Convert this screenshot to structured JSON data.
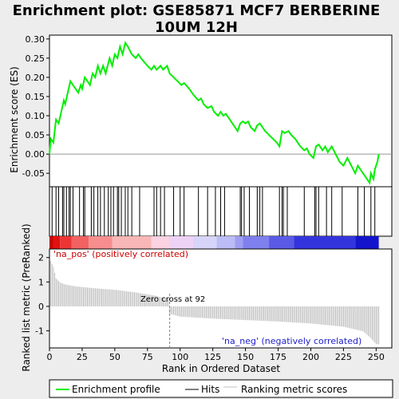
{
  "title_line1": "Enrichment plot: GSE85871 MCF7 BERBERINE",
  "title_line2": "10UM 12H",
  "es_panel": {
    "ylabel": "Enrichment score (ES)",
    "y_ticks": [
      "0.30",
      "0.25",
      "0.20",
      "0.15",
      "0.10",
      "0.05",
      "0.00",
      "-0.05"
    ]
  },
  "metric_panel": {
    "ylabel": "Ranked list metric (PreRanked)",
    "y_ticks": [
      "2",
      "1",
      "0",
      "-1"
    ],
    "pos_label": "'na_pos' (positively correlated)",
    "neg_label": "'na_neg' (negatively correlated)",
    "zero_cross_label": "Zero cross at 92"
  },
  "xlabel": "Rank in Ordered Dataset",
  "x_ticks": [
    "0",
    "25",
    "50",
    "75",
    "100",
    "125",
    "150",
    "175",
    "200",
    "225",
    "250"
  ],
  "legend": {
    "items": [
      {
        "label": "Enrichment profile",
        "color": "#00ee00"
      },
      {
        "label": "Hits",
        "color": "#000000"
      },
      {
        "label": "Ranking metric scores",
        "color": "#c0c0c0"
      }
    ]
  },
  "chart_data": {
    "type": "line",
    "n_genes": 252,
    "zero_cross": 92,
    "es_ylim": [
      -0.085,
      0.31
    ],
    "metric_ylim": [
      -1.7,
      2.35
    ],
    "colors": {
      "profile": "#00ee00",
      "hits": "#000000",
      "metric": "#c0c0c0",
      "zero_line": "#808080"
    },
    "es_profile": [
      [
        0,
        0.0
      ],
      [
        1,
        0.04
      ],
      [
        3,
        0.03
      ],
      [
        5,
        0.09
      ],
      [
        7,
        0.08
      ],
      [
        9,
        0.11
      ],
      [
        11,
        0.14
      ],
      [
        12,
        0.13
      ],
      [
        14,
        0.16
      ],
      [
        16,
        0.19
      ],
      [
        18,
        0.18
      ],
      [
        20,
        0.17
      ],
      [
        22,
        0.16
      ],
      [
        24,
        0.18
      ],
      [
        25,
        0.17
      ],
      [
        27,
        0.2
      ],
      [
        29,
        0.19
      ],
      [
        31,
        0.18
      ],
      [
        33,
        0.21
      ],
      [
        35,
        0.2
      ],
      [
        37,
        0.23
      ],
      [
        39,
        0.21
      ],
      [
        41,
        0.23
      ],
      [
        43,
        0.21
      ],
      [
        46,
        0.25
      ],
      [
        48,
        0.23
      ],
      [
        50,
        0.26
      ],
      [
        52,
        0.25
      ],
      [
        54,
        0.28
      ],
      [
        56,
        0.26
      ],
      [
        58,
        0.29
      ],
      [
        60,
        0.28
      ],
      [
        63,
        0.26
      ],
      [
        66,
        0.25
      ],
      [
        68,
        0.26
      ],
      [
        70,
        0.25
      ],
      [
        75,
        0.23
      ],
      [
        78,
        0.22
      ],
      [
        80,
        0.23
      ],
      [
        82,
        0.22
      ],
      [
        85,
        0.23
      ],
      [
        87,
        0.22
      ],
      [
        90,
        0.23
      ],
      [
        92,
        0.21
      ],
      [
        95,
        0.2
      ],
      [
        98,
        0.19
      ],
      [
        101,
        0.18
      ],
      [
        103,
        0.185
      ],
      [
        107,
        0.17
      ],
      [
        110,
        0.155
      ],
      [
        114,
        0.14
      ],
      [
        116,
        0.145
      ],
      [
        118,
        0.13
      ],
      [
        121,
        0.12
      ],
      [
        124,
        0.125
      ],
      [
        126,
        0.11
      ],
      [
        129,
        0.1
      ],
      [
        131,
        0.11
      ],
      [
        133,
        0.1
      ],
      [
        135,
        0.105
      ],
      [
        138,
        0.09
      ],
      [
        140,
        0.08
      ],
      [
        144,
        0.06
      ],
      [
        146,
        0.08
      ],
      [
        148,
        0.085
      ],
      [
        150,
        0.08
      ],
      [
        152,
        0.085
      ],
      [
        154,
        0.07
      ],
      [
        157,
        0.06
      ],
      [
        159,
        0.075
      ],
      [
        161,
        0.08
      ],
      [
        163,
        0.07
      ],
      [
        165,
        0.06
      ],
      [
        168,
        0.05
      ],
      [
        171,
        0.04
      ],
      [
        174,
        0.03
      ],
      [
        176,
        0.02
      ],
      [
        178,
        0.06
      ],
      [
        180,
        0.055
      ],
      [
        183,
        0.06
      ],
      [
        185,
        0.05
      ],
      [
        188,
        0.04
      ],
      [
        190,
        0.03
      ],
      [
        192,
        0.02
      ],
      [
        195,
        0.01
      ],
      [
        197,
        0.015
      ],
      [
        199,
        0.0
      ],
      [
        202,
        -0.01
      ],
      [
        204,
        0.02
      ],
      [
        206,
        0.025
      ],
      [
        209,
        0.01
      ],
      [
        211,
        0.02
      ],
      [
        213,
        0.005
      ],
      [
        216,
        0.02
      ],
      [
        219,
        0.0
      ],
      [
        222,
        -0.02
      ],
      [
        225,
        -0.03
      ],
      [
        228,
        -0.01
      ],
      [
        231,
        -0.03
      ],
      [
        234,
        -0.05
      ],
      [
        236,
        -0.03
      ],
      [
        239,
        -0.045
      ],
      [
        242,
        -0.06
      ],
      [
        245,
        -0.075
      ],
      [
        246,
        -0.05
      ],
      [
        248,
        -0.065
      ],
      [
        249,
        -0.04
      ],
      [
        251,
        -0.02
      ],
      [
        252,
        0.0
      ]
    ],
    "hits": [
      2,
      5,
      7,
      10,
      11,
      13,
      15,
      16,
      18,
      23,
      26,
      27,
      32,
      34,
      37,
      39,
      42,
      45,
      47,
      49,
      52,
      53,
      55,
      58,
      60,
      63,
      69,
      80,
      82,
      85,
      88,
      95,
      100,
      103,
      114,
      121,
      127,
      131,
      134,
      146,
      147,
      149,
      153,
      159,
      161,
      163,
      176,
      178,
      179,
      182,
      195,
      203,
      204,
      206,
      212,
      216,
      224,
      236,
      241,
      246,
      249
    ],
    "metric": [
      [
        1,
        1.85
      ],
      [
        3,
        1.6
      ],
      [
        5,
        1.15
      ],
      [
        8,
        0.98
      ],
      [
        12,
        0.9
      ],
      [
        20,
        0.82
      ],
      [
        35,
        0.74
      ],
      [
        50,
        0.68
      ],
      [
        65,
        0.58
      ],
      [
        80,
        0.45
      ],
      [
        91,
        0.3
      ],
      [
        92,
        -0.3
      ],
      [
        100,
        -0.42
      ],
      [
        125,
        -0.5
      ],
      [
        150,
        -0.56
      ],
      [
        175,
        -0.62
      ],
      [
        200,
        -0.7
      ],
      [
        225,
        -0.83
      ],
      [
        240,
        -1.02
      ],
      [
        246,
        -1.3
      ],
      [
        250,
        -1.55
      ]
    ],
    "heat_bins": [
      "#cc0000",
      "#e01212",
      "#ec3636",
      "#f26262",
      "#f68e8e",
      "#f9b6b6",
      "#fbd2e2",
      "#eed2f6",
      "#d6d4f8",
      "#bcbcf6",
      "#9e9ef2",
      "#7f7fed",
      "#5a5ae6",
      "#3434dd",
      "#1414cc"
    ],
    "heat_bin_edges": [
      0,
      3,
      8,
      17,
      30,
      48,
      78,
      92,
      110,
      128,
      142,
      148,
      168,
      187,
      234,
      252
    ]
  }
}
